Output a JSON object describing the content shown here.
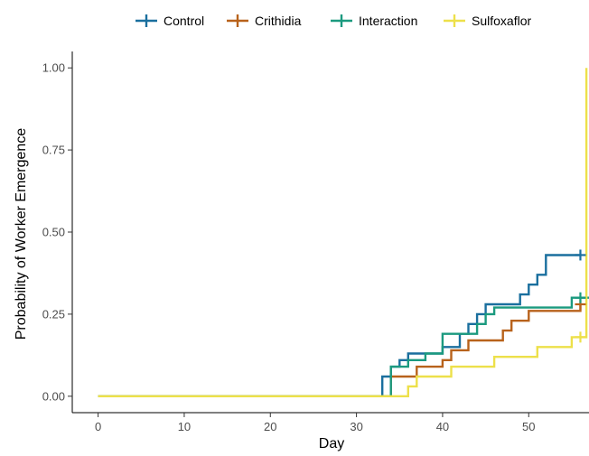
{
  "chart_data": {
    "type": "line",
    "subtype": "step",
    "title": "",
    "xlabel": "Day",
    "ylabel": "Probability of Worker Emergence",
    "xlim": [
      -3,
      57
    ],
    "ylim": [
      -0.05,
      1.05
    ],
    "x_ticks": [
      0,
      10,
      20,
      30,
      40,
      50
    ],
    "y_ticks": [
      0.0,
      0.25,
      0.5,
      0.75,
      1.0
    ],
    "y_tick_labels": [
      "0.00",
      "0.25",
      "0.50",
      "0.75",
      "1.00"
    ],
    "grid": false,
    "legend_position": "top",
    "series": [
      {
        "name": "Control",
        "color": "#1a6f9e",
        "censor": {
          "x": 56,
          "y": 0.43
        },
        "points": [
          [
            0,
            0
          ],
          [
            33,
            0
          ],
          [
            33,
            0.06
          ],
          [
            34,
            0.06
          ],
          [
            34,
            0.09
          ],
          [
            35,
            0.09
          ],
          [
            35,
            0.11
          ],
          [
            36,
            0.11
          ],
          [
            36,
            0.13
          ],
          [
            40,
            0.13
          ],
          [
            40,
            0.15
          ],
          [
            42,
            0.15
          ],
          [
            42,
            0.19
          ],
          [
            43,
            0.19
          ],
          [
            43,
            0.22
          ],
          [
            44,
            0.22
          ],
          [
            44,
            0.25
          ],
          [
            45,
            0.25
          ],
          [
            45,
            0.28
          ],
          [
            49,
            0.28
          ],
          [
            49,
            0.31
          ],
          [
            50,
            0.31
          ],
          [
            50,
            0.34
          ],
          [
            51,
            0.34
          ],
          [
            51,
            0.37
          ],
          [
            52,
            0.37
          ],
          [
            52,
            0.43
          ],
          [
            56,
            0.43
          ]
        ]
      },
      {
        "name": "Crithidia",
        "color": "#b8621b",
        "censor": {
          "x": 56,
          "y": 0.28
        },
        "points": [
          [
            0,
            0
          ],
          [
            34,
            0
          ],
          [
            34,
            0.06
          ],
          [
            37,
            0.06
          ],
          [
            37,
            0.09
          ],
          [
            40,
            0.09
          ],
          [
            40,
            0.11
          ],
          [
            41,
            0.11
          ],
          [
            41,
            0.14
          ],
          [
            43,
            0.14
          ],
          [
            43,
            0.17
          ],
          [
            47,
            0.17
          ],
          [
            47,
            0.2
          ],
          [
            48,
            0.2
          ],
          [
            48,
            0.23
          ],
          [
            50,
            0.23
          ],
          [
            50,
            0.26
          ],
          [
            56,
            0.26
          ],
          [
            56,
            0.28
          ]
        ]
      },
      {
        "name": "Interaction",
        "color": "#1b9a7f",
        "censor": {
          "x": 56,
          "y": 0.3
        },
        "points": [
          [
            0,
            0
          ],
          [
            34,
            0
          ],
          [
            34,
            0.09
          ],
          [
            36,
            0.09
          ],
          [
            36,
            0.11
          ],
          [
            38,
            0.11
          ],
          [
            38,
            0.13
          ],
          [
            40,
            0.13
          ],
          [
            40,
            0.19
          ],
          [
            44,
            0.19
          ],
          [
            44,
            0.22
          ],
          [
            45,
            0.22
          ],
          [
            45,
            0.25
          ],
          [
            46,
            0.25
          ],
          [
            46,
            0.27
          ],
          [
            55,
            0.27
          ],
          [
            55,
            0.3
          ],
          [
            57,
            0.3
          ]
        ]
      },
      {
        "name": "Sulfoxaflor",
        "color": "#ede04a",
        "censor": {
          "x": 56,
          "y": 0.18
        },
        "points": [
          [
            0,
            0
          ],
          [
            36,
            0
          ],
          [
            36,
            0.03
          ],
          [
            37,
            0.03
          ],
          [
            37,
            0.06
          ],
          [
            41,
            0.06
          ],
          [
            41,
            0.09
          ],
          [
            46,
            0.09
          ],
          [
            46,
            0.12
          ],
          [
            51,
            0.12
          ],
          [
            51,
            0.15
          ],
          [
            55,
            0.15
          ],
          [
            55,
            0.18
          ],
          [
            56.7,
            0.18
          ],
          [
            56.7,
            1.0
          ]
        ]
      }
    ]
  }
}
